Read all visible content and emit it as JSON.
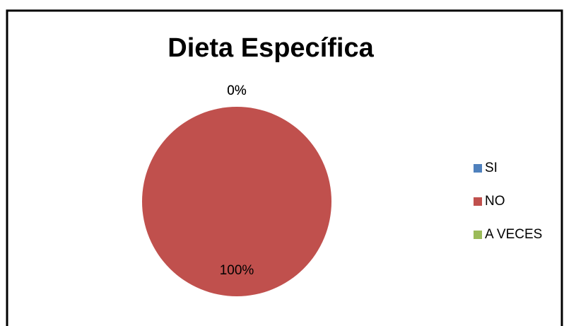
{
  "chart_data": {
    "type": "pie",
    "title": "Dieta Específica",
    "categories": [
      "SI",
      "NO",
      "A VECES"
    ],
    "values": [
      0,
      100,
      0
    ],
    "value_labels": [
      "0%",
      "100%",
      "0%"
    ],
    "colors": [
      "#4f81bd",
      "#c0504d",
      "#9bbb59"
    ],
    "legend": "right"
  }
}
